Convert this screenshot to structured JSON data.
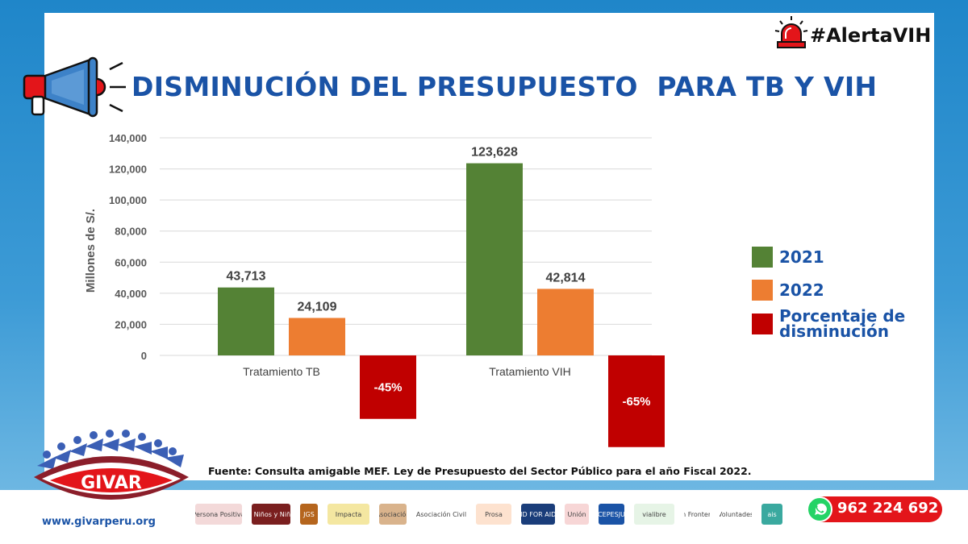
{
  "title": "DISMINUCIÓN DEL PRESUPUESTO  PARA TB Y VIH",
  "hashtag": "#AlertaVIH",
  "source": "Fuente: Consulta amigable MEF. Ley de Presupuesto del Sector Público para el año Fiscal 2022.",
  "website": "www.givarperu.org",
  "phone": "962 224 692",
  "logo_text": "GIVAR",
  "icons": [
    "siren-icon",
    "megaphone-icon",
    "whatsapp-icon"
  ],
  "partners": [
    "Persona Positiva",
    "Tierra de Niños y Niñas Libres",
    "JGS",
    "Impacta",
    "Asociación",
    "Asociación Civil",
    "Prosa",
    "AID FOR AIDS",
    "Unión",
    "CEPESJU",
    "vialibre",
    "Sin Fronteras",
    "Voluntades",
    "ais"
  ],
  "colors": {
    "title": "#1a53a6",
    "y2021": "#548235",
    "y2022": "#ed7d31",
    "decrease": "#c00000",
    "phone": "#e3151a"
  },
  "chart_data": {
    "type": "bar",
    "ylabel": "Millones de S/.",
    "ylim": [
      0,
      140000
    ],
    "yticks": [
      "140,000",
      "120,000",
      "100,000",
      "80,000",
      "60,000",
      "40,000",
      "20,000",
      "0"
    ],
    "categories": [
      "Tratamiento TB",
      "Tratamiento VIH"
    ],
    "series": [
      {
        "name": "2021",
        "values": [
          43713,
          123628
        ],
        "labels": [
          "43,713",
          "123,628"
        ]
      },
      {
        "name": "2022",
        "values": [
          24109,
          42814
        ],
        "labels": [
          "24,109",
          "42,814"
        ]
      },
      {
        "name": "Porcentaje de disminución",
        "values": [
          -45,
          -65
        ],
        "labels": [
          "-45%",
          "-65%"
        ]
      }
    ],
    "legend_position": "right",
    "grid": true
  }
}
